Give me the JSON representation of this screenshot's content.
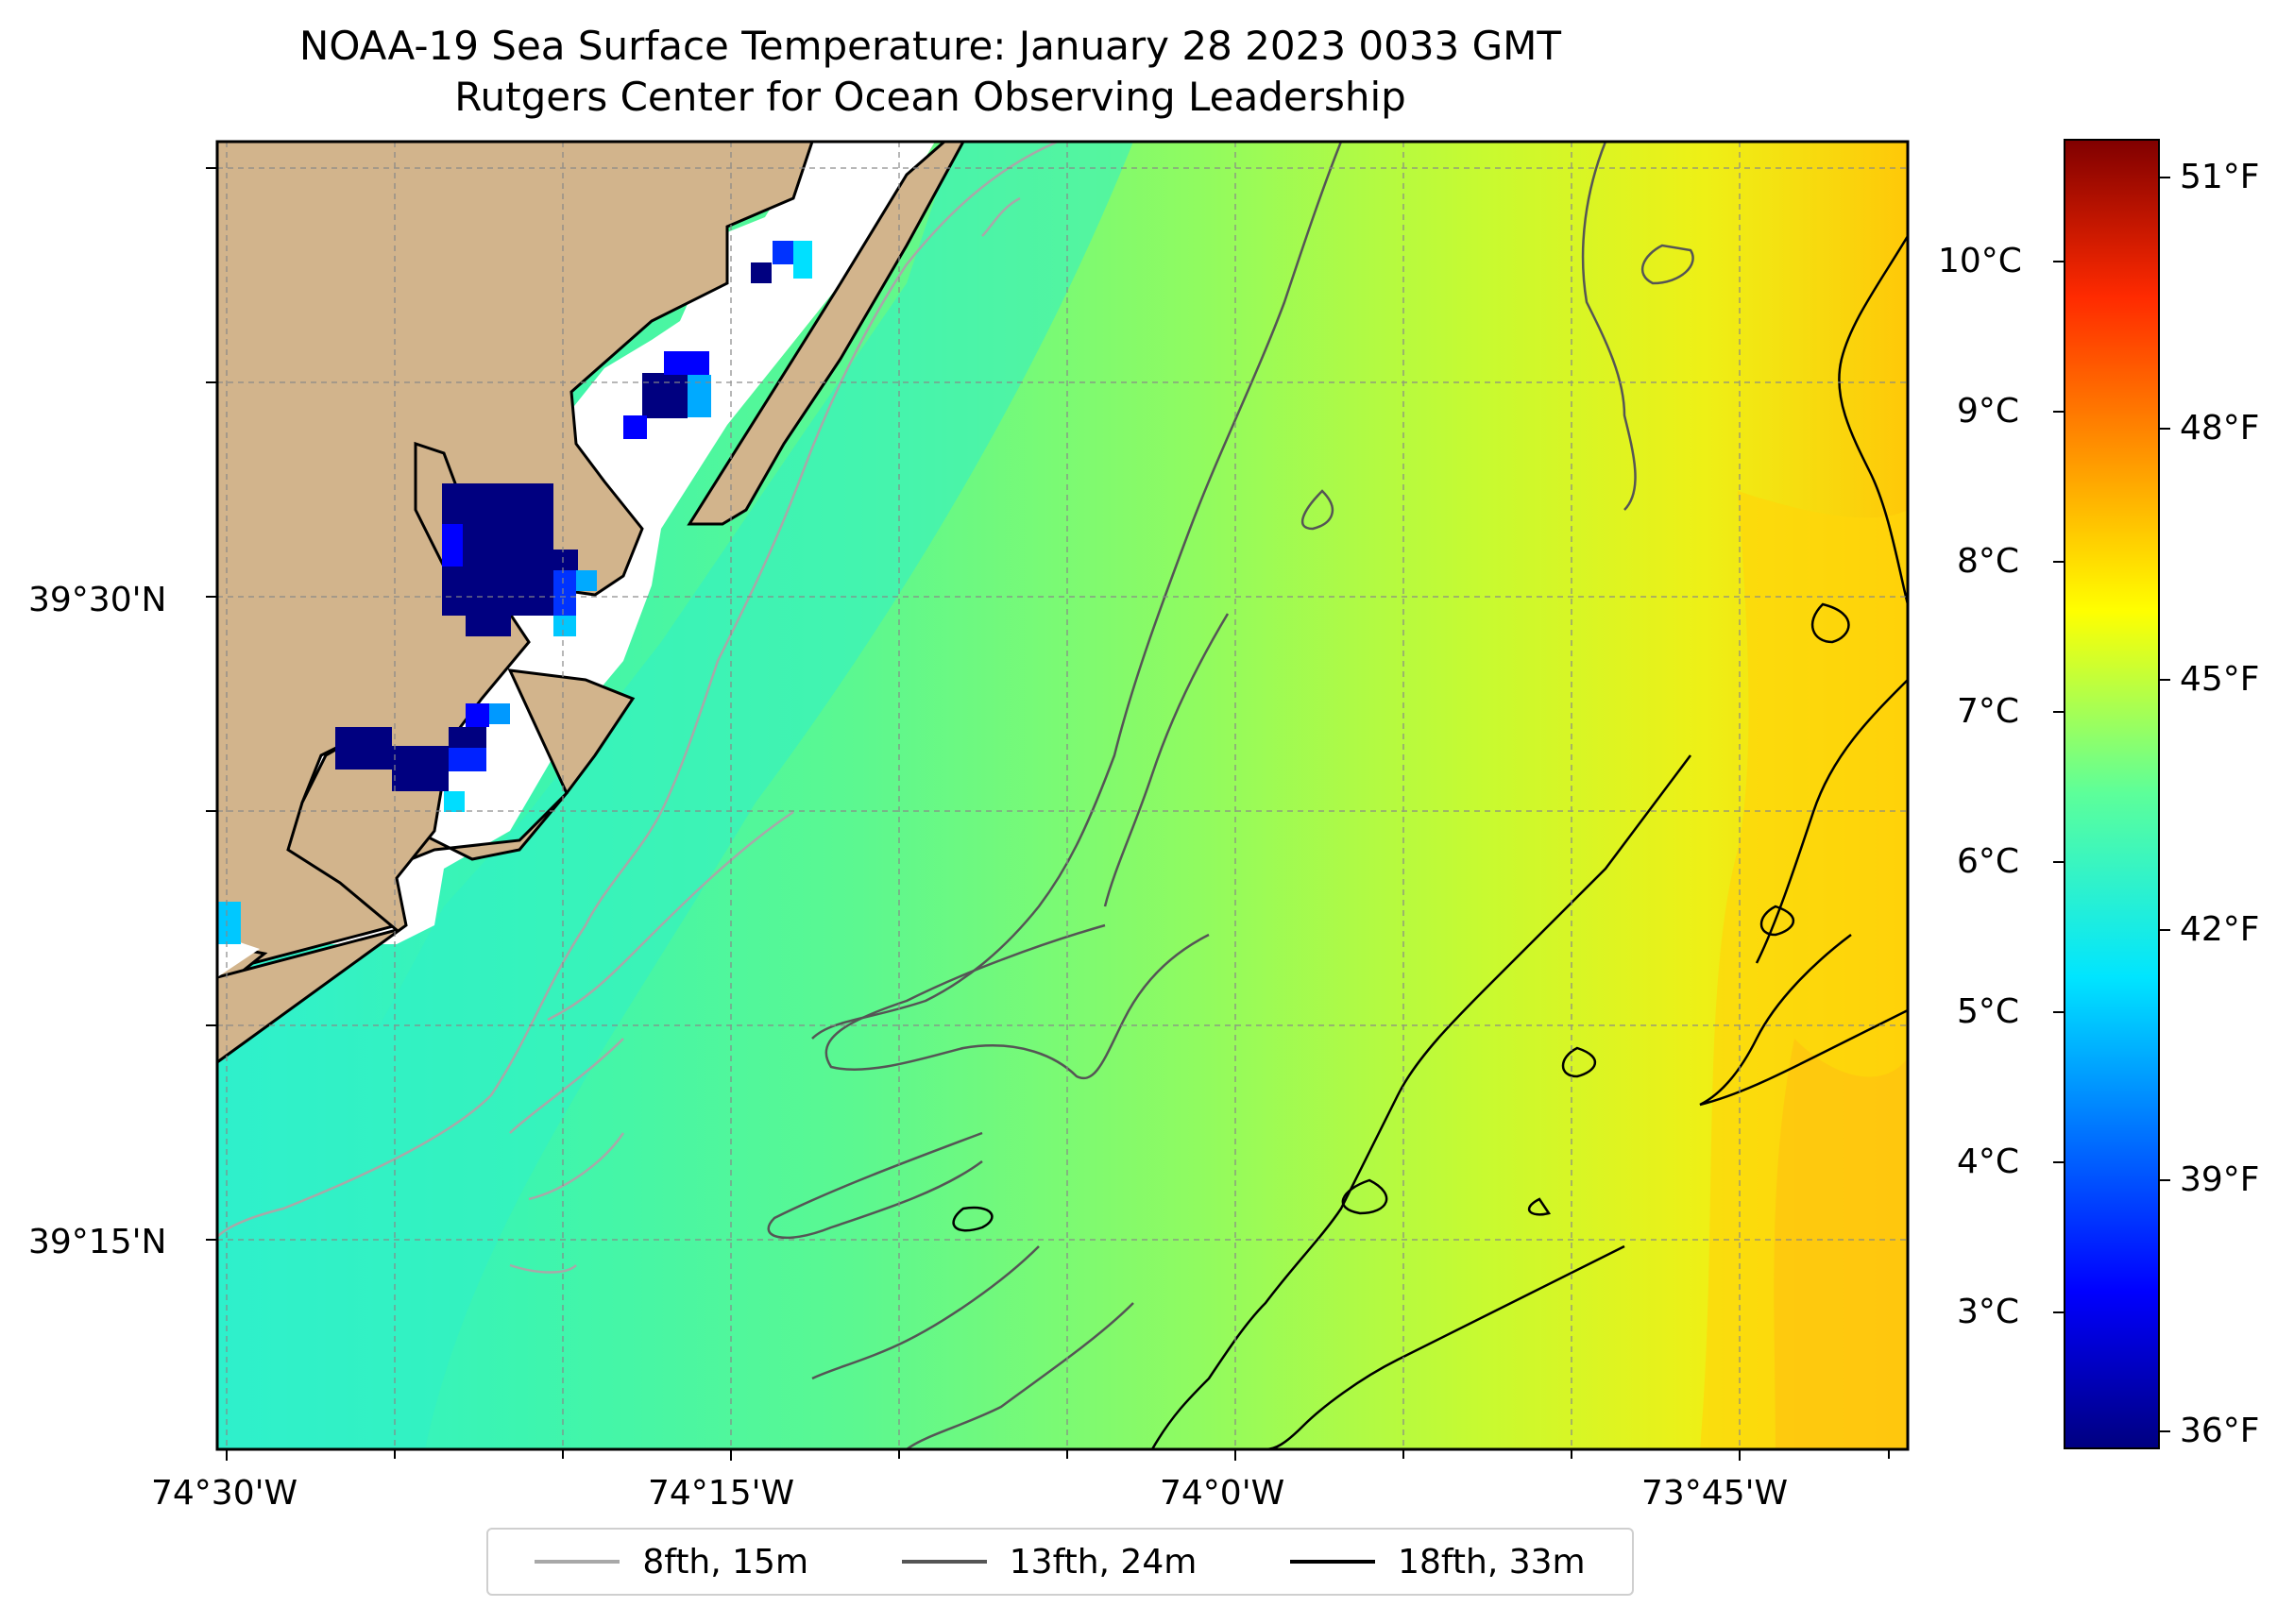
{
  "title_line1": "NOAA-19 Sea Surface Temperature: January 28 2023 0033 GMT",
  "title_line2": "Rutgers Center for Ocean Observing Leadership",
  "lon_ticks": [
    "74°30'W",
    "74°15'W",
    "74°0'W",
    "73°45'W"
  ],
  "lat_ticks": [
    "39°30'N",
    "39°15'N"
  ],
  "colorbar": {
    "celsius_labels": [
      "10°C",
      "9°C",
      "8°C",
      "7°C",
      "6°C",
      "5°C",
      "4°C",
      "3°C"
    ],
    "fahrenheit_labels": [
      "51°F",
      "48°F",
      "45°F",
      "42°F",
      "39°F",
      "36°F"
    ],
    "colormap": "jet",
    "range_celsius": [
      2.2,
      10.7
    ]
  },
  "legend": [
    {
      "label": "8fth, 15m",
      "color": "#a8a8a8"
    },
    {
      "label": "13fth, 24m",
      "color": "#555555"
    },
    {
      "label": "18fth, 33m",
      "color": "#000000"
    }
  ],
  "colors": {
    "land": "#d2b48c",
    "missing": "#ffffff"
  }
}
